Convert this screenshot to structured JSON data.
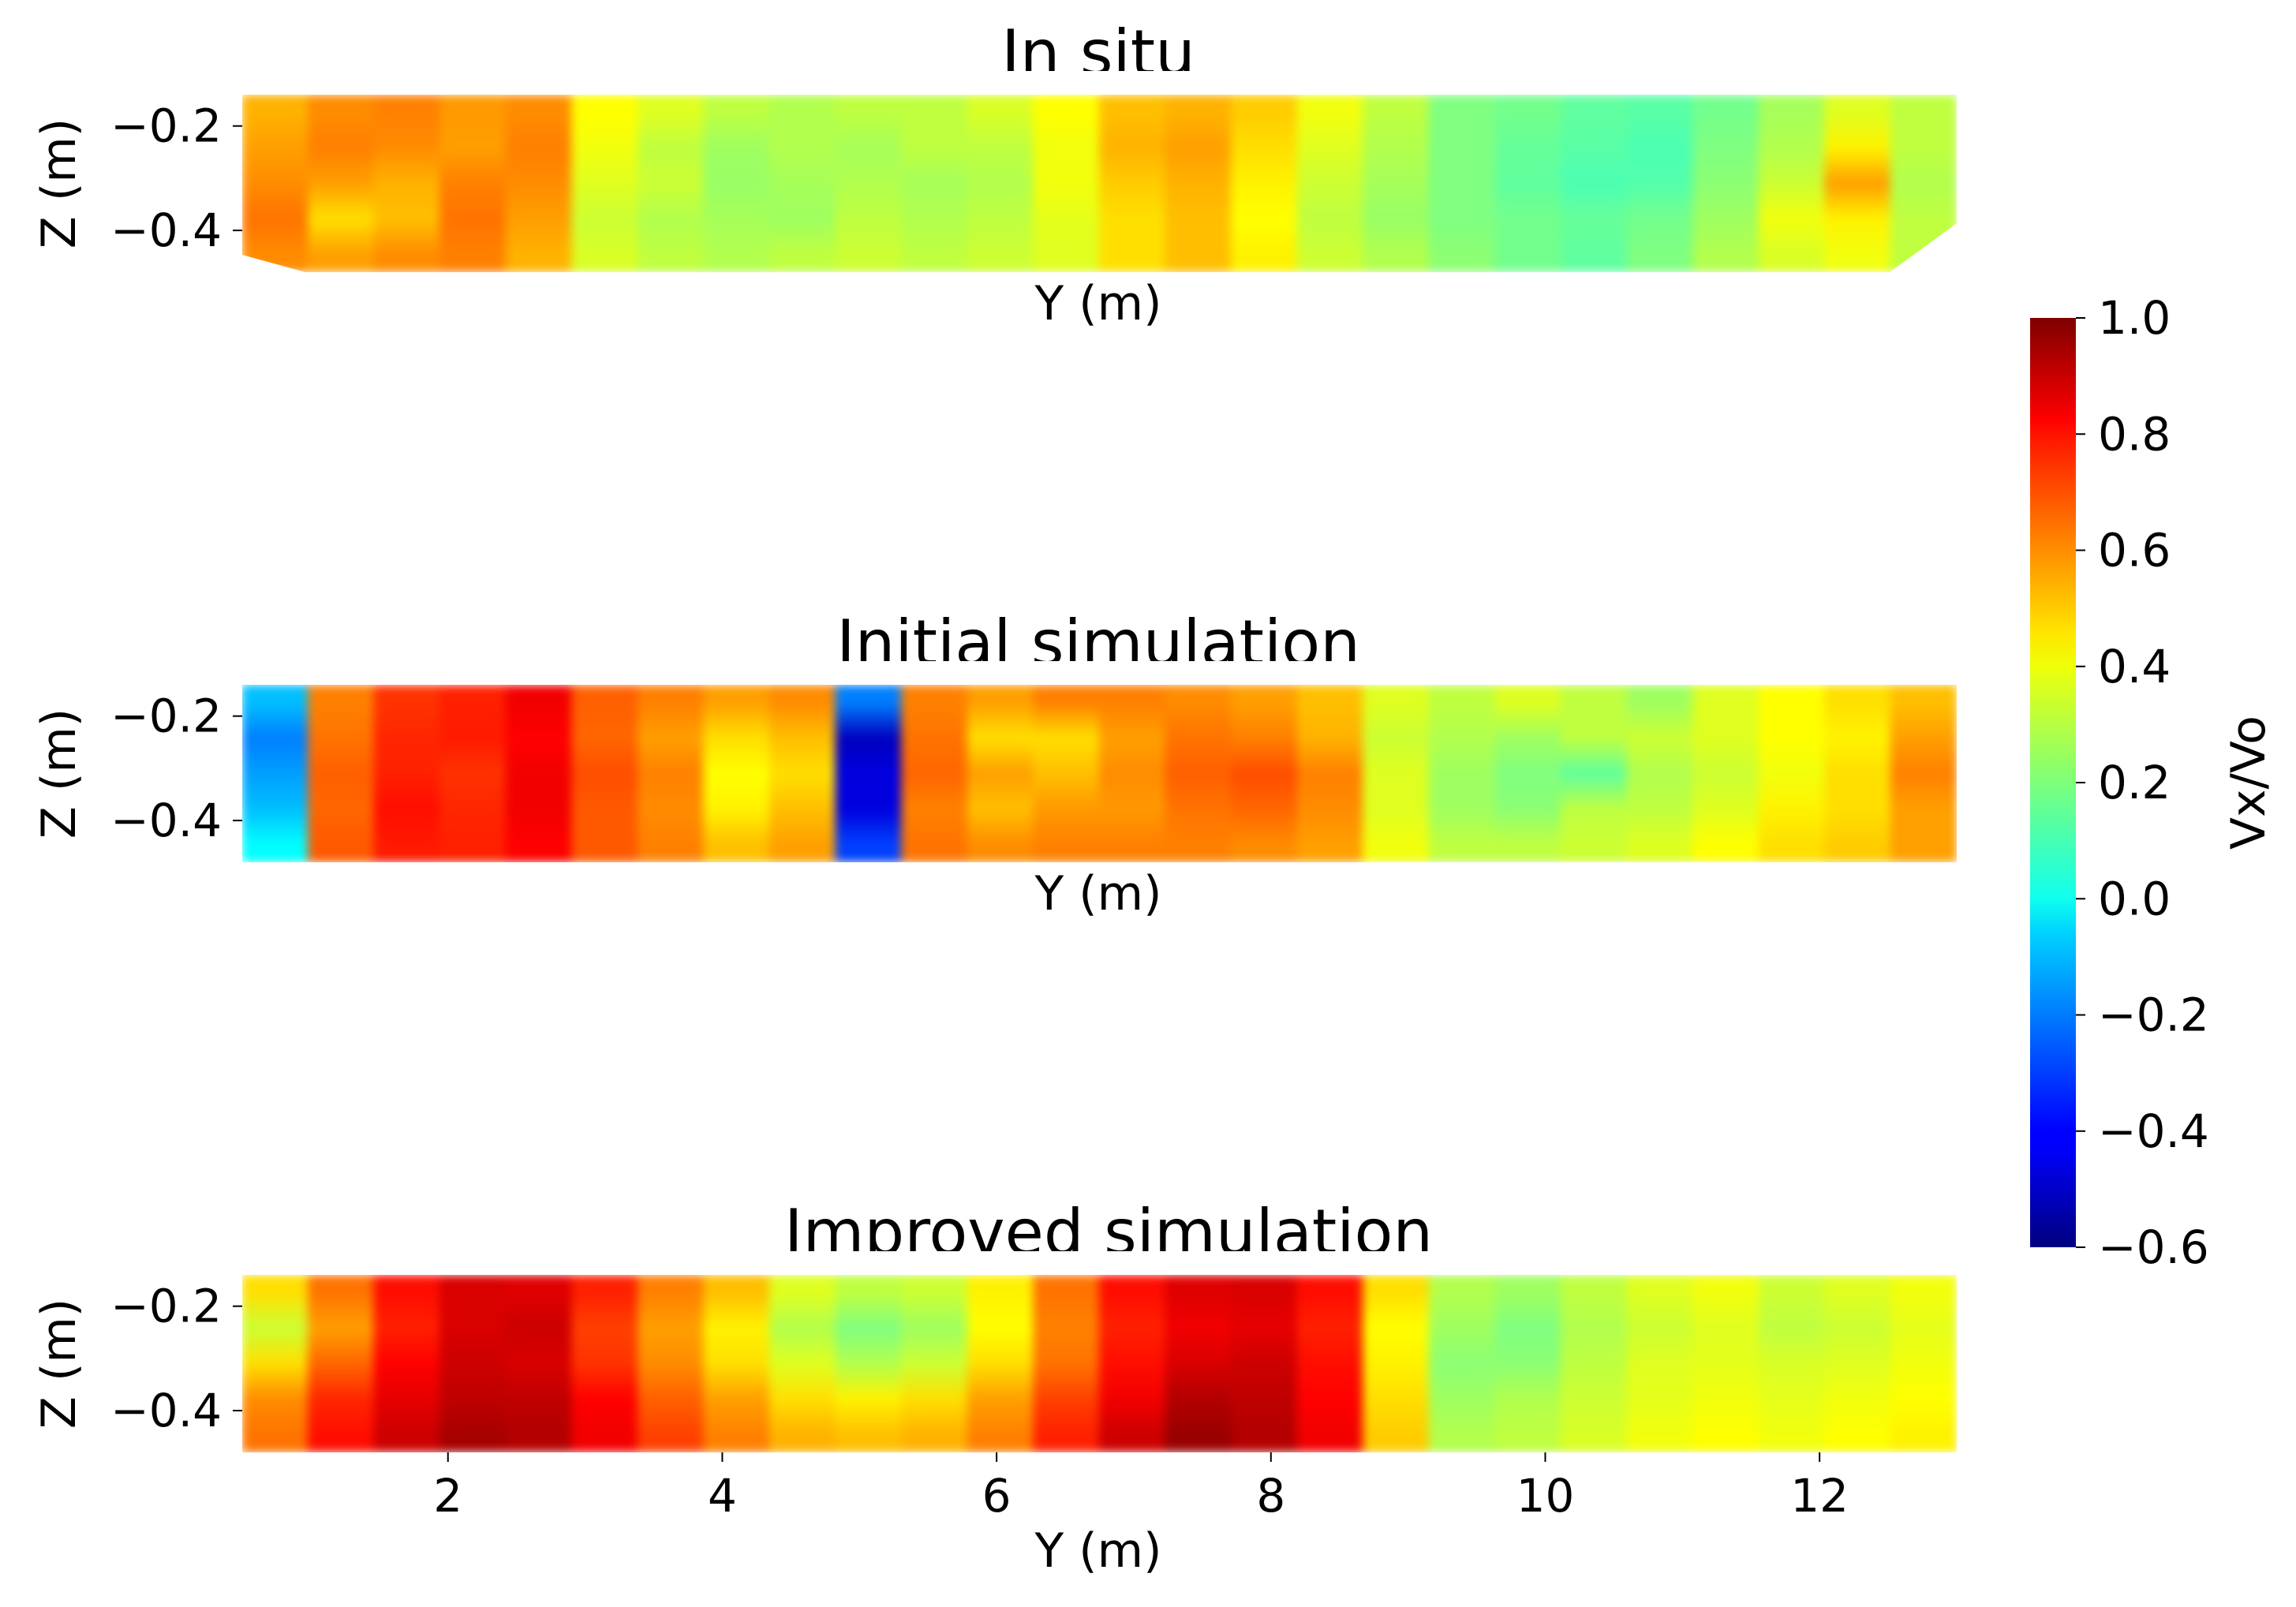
{
  "chart_data": [
    {
      "type": "heatmap",
      "title": "In situ",
      "xlabel": "Y (m)",
      "ylabel": "Z (m)",
      "xlim": [
        0.5,
        13.0
      ],
      "ylim": [
        -0.48,
        -0.14
      ],
      "yticks": [
        -0.2,
        -0.4
      ],
      "ytick_labels": [
        "−0.2",
        "−0.4"
      ],
      "xticks_shown": false,
      "y_columns": [
        0.5,
        1.0,
        1.5,
        2.0,
        2.5,
        3.0,
        3.5,
        4.0,
        4.5,
        5.0,
        5.5,
        6.0,
        6.5,
        7.0,
        7.5,
        8.0,
        8.5,
        9.0,
        9.5,
        10.0,
        10.5,
        11.0,
        11.5,
        12.0,
        12.5,
        13.0
      ],
      "z_rows": [
        -0.16,
        -0.24,
        -0.32,
        -0.4,
        -0.46
      ],
      "values": [
        [
          0.52,
          0.58,
          0.6,
          0.56,
          0.58,
          0.4,
          0.35,
          0.3,
          0.28,
          0.3,
          0.3,
          0.34,
          0.4,
          0.5,
          0.52,
          0.48,
          0.38,
          0.3,
          0.2,
          0.18,
          0.15,
          0.14,
          0.18,
          0.26,
          0.35,
          0.3
        ],
        [
          0.55,
          0.6,
          0.58,
          0.55,
          0.6,
          0.38,
          0.3,
          0.25,
          0.28,
          0.26,
          0.3,
          0.3,
          0.38,
          0.52,
          0.55,
          0.45,
          0.35,
          0.28,
          0.2,
          0.16,
          0.14,
          0.12,
          0.2,
          0.28,
          0.42,
          0.3
        ],
        [
          0.58,
          0.55,
          0.52,
          0.6,
          0.58,
          0.35,
          0.32,
          0.24,
          0.26,
          0.28,
          0.26,
          0.28,
          0.38,
          0.48,
          0.52,
          0.42,
          0.32,
          0.26,
          0.2,
          0.15,
          0.12,
          0.13,
          0.22,
          0.32,
          0.55,
          0.28
        ],
        [
          0.62,
          0.45,
          0.5,
          0.62,
          0.55,
          0.32,
          0.28,
          0.26,
          0.25,
          0.3,
          0.28,
          0.3,
          0.36,
          0.45,
          0.5,
          0.4,
          0.3,
          0.24,
          0.2,
          0.18,
          0.16,
          0.18,
          0.25,
          0.38,
          0.42,
          0.3
        ],
        [
          0.58,
          0.55,
          0.58,
          0.6,
          0.52,
          0.34,
          0.3,
          0.28,
          0.3,
          0.32,
          0.3,
          0.32,
          0.35,
          0.45,
          0.5,
          0.42,
          0.32,
          0.28,
          0.22,
          0.18,
          0.15,
          0.2,
          0.28,
          0.34,
          0.38,
          0.3
        ]
      ]
    },
    {
      "type": "heatmap",
      "title": "Initial simulation",
      "xlabel": "Y (m)",
      "ylabel": "Z (m)",
      "xlim": [
        0.5,
        13.0
      ],
      "ylim": [
        -0.48,
        -0.14
      ],
      "yticks": [
        -0.2,
        -0.4
      ],
      "ytick_labels": [
        "−0.2",
        "−0.4"
      ],
      "xticks_shown": false,
      "y_columns": [
        0.5,
        1.0,
        1.5,
        2.0,
        2.5,
        3.0,
        3.5,
        4.0,
        4.5,
        5.0,
        5.5,
        6.0,
        6.5,
        7.0,
        7.5,
        8.0,
        8.5,
        9.0,
        9.5,
        10.0,
        10.5,
        11.0,
        11.5,
        12.0,
        12.5,
        13.0
      ],
      "z_rows": [
        -0.16,
        -0.24,
        -0.32,
        -0.4,
        -0.46
      ],
      "values": [
        [
          -0.1,
          0.6,
          0.72,
          0.75,
          0.82,
          0.65,
          0.6,
          0.55,
          0.58,
          -0.2,
          0.6,
          0.55,
          0.6,
          0.6,
          0.58,
          0.55,
          0.5,
          0.35,
          0.3,
          0.35,
          0.3,
          0.25,
          0.35,
          0.4,
          0.45,
          0.5
        ],
        [
          -0.2,
          0.62,
          0.74,
          0.76,
          0.8,
          0.64,
          0.55,
          0.45,
          0.5,
          -0.5,
          0.62,
          0.45,
          0.45,
          0.55,
          0.62,
          0.6,
          0.52,
          0.32,
          0.28,
          0.25,
          0.3,
          0.32,
          0.35,
          0.4,
          0.42,
          0.55
        ],
        [
          -0.15,
          0.65,
          0.75,
          0.72,
          0.82,
          0.68,
          0.6,
          0.4,
          0.45,
          -0.45,
          0.64,
          0.55,
          0.5,
          0.58,
          0.65,
          0.68,
          0.6,
          0.35,
          0.25,
          0.2,
          0.15,
          0.28,
          0.32,
          0.38,
          0.45,
          0.6
        ],
        [
          -0.1,
          0.64,
          0.78,
          0.74,
          0.82,
          0.66,
          0.58,
          0.42,
          0.5,
          -0.45,
          0.6,
          0.5,
          0.56,
          0.56,
          0.62,
          0.64,
          0.58,
          0.35,
          0.25,
          0.22,
          0.3,
          0.3,
          0.35,
          0.42,
          0.45,
          0.55
        ],
        [
          0.0,
          0.66,
          0.76,
          0.75,
          0.8,
          0.66,
          0.6,
          0.5,
          0.55,
          -0.3,
          0.62,
          0.58,
          0.6,
          0.6,
          0.6,
          0.58,
          0.55,
          0.38,
          0.3,
          0.3,
          0.32,
          0.35,
          0.4,
          0.45,
          0.48,
          0.55
        ]
      ]
    },
    {
      "type": "heatmap",
      "title": "Improved simulation",
      "xlabel": "Y (m)",
      "ylabel": "Z (m)",
      "xlim": [
        0.5,
        13.0
      ],
      "ylim": [
        -0.48,
        -0.14
      ],
      "xticks": [
        2,
        4,
        6,
        8,
        10,
        12
      ],
      "xtick_labels": [
        "2",
        "4",
        "6",
        "8",
        "10",
        "12"
      ],
      "yticks": [
        -0.2,
        -0.4
      ],
      "ytick_labels": [
        "−0.2",
        "−0.4"
      ],
      "xticks_shown": true,
      "y_columns": [
        0.5,
        1.0,
        1.5,
        2.0,
        2.5,
        3.0,
        3.5,
        4.0,
        4.5,
        5.0,
        5.5,
        6.0,
        6.5,
        7.0,
        7.5,
        8.0,
        8.5,
        9.0,
        9.5,
        10.0,
        10.5,
        11.0,
        11.5,
        12.0,
        12.5,
        13.0
      ],
      "z_rows": [
        -0.16,
        -0.24,
        -0.32,
        -0.4,
        -0.46
      ],
      "values": [
        [
          0.45,
          0.62,
          0.78,
          0.86,
          0.85,
          0.75,
          0.6,
          0.5,
          0.35,
          0.3,
          0.32,
          0.42,
          0.62,
          0.78,
          0.85,
          0.86,
          0.78,
          0.45,
          0.28,
          0.25,
          0.3,
          0.35,
          0.38,
          0.32,
          0.35,
          0.38
        ],
        [
          0.32,
          0.55,
          0.75,
          0.86,
          0.88,
          0.7,
          0.55,
          0.42,
          0.28,
          0.2,
          0.25,
          0.4,
          0.6,
          0.75,
          0.82,
          0.84,
          0.75,
          0.4,
          0.25,
          0.2,
          0.28,
          0.32,
          0.35,
          0.3,
          0.32,
          0.36
        ],
        [
          0.45,
          0.64,
          0.8,
          0.88,
          0.86,
          0.72,
          0.58,
          0.45,
          0.35,
          0.28,
          0.32,
          0.45,
          0.62,
          0.78,
          0.86,
          0.88,
          0.78,
          0.42,
          0.22,
          0.22,
          0.3,
          0.35,
          0.36,
          0.34,
          0.35,
          0.38
        ],
        [
          0.58,
          0.74,
          0.84,
          0.9,
          0.9,
          0.8,
          0.65,
          0.55,
          0.45,
          0.42,
          0.45,
          0.55,
          0.7,
          0.82,
          0.92,
          0.9,
          0.8,
          0.45,
          0.25,
          0.28,
          0.32,
          0.36,
          0.38,
          0.36,
          0.38,
          0.4
        ],
        [
          0.62,
          0.78,
          0.88,
          0.94,
          0.92,
          0.82,
          0.7,
          0.6,
          0.52,
          0.5,
          0.52,
          0.6,
          0.75,
          0.88,
          0.96,
          0.92,
          0.82,
          0.48,
          0.28,
          0.3,
          0.34,
          0.38,
          0.4,
          0.38,
          0.4,
          0.42
        ]
      ]
    }
  ],
  "colorbar": {
    "label": "Vx/Vo",
    "colormap": "jet",
    "vmin": -0.6,
    "vmax": 1.0,
    "ticks": [
      1.0,
      0.8,
      0.6,
      0.4,
      0.2,
      0.0,
      -0.2,
      -0.4,
      -0.6
    ],
    "tick_labels": [
      "1.0",
      "0.8",
      "0.6",
      "0.4",
      "0.2",
      "0.0",
      "−0.2",
      "−0.4",
      "−0.6"
    ]
  }
}
